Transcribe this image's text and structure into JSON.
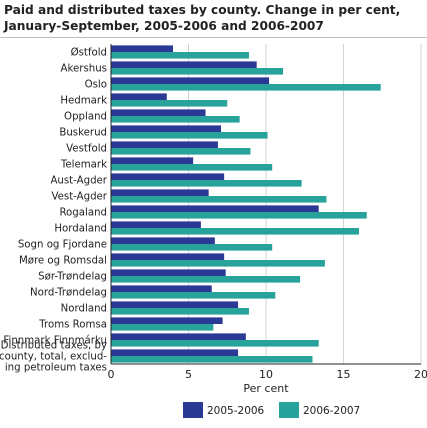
{
  "chart_data": {
    "type": "bar",
    "orientation": "horizontal",
    "title": "Paid and distributed taxes by county. Change in per cent, January-September, 2005-2006 and 2006-2007",
    "xlabel": "Per cent",
    "xlim": [
      0,
      20
    ],
    "xticks": [
      0,
      5,
      10,
      15,
      20
    ],
    "legend_position": "bottom",
    "categories": [
      "Østfold",
      "Akershus",
      "Oslo",
      "Hedmark",
      "Oppland",
      "Buskerud",
      "Vestfold",
      "Telemark",
      "Aust-Agder",
      "Vest-Agder",
      "Rogaland",
      "Hordaland",
      "Sogn og Fjordane",
      "Møre og Romsdal",
      "Sør-Trøndelag",
      "Nord-Trøndelag",
      "Nordland",
      "Troms Romsa",
      "Finnmark Finnmárku",
      "Distributed taxes, by county, total, excluding petroleum taxes"
    ],
    "category_lines": [
      [
        "Østfold"
      ],
      [
        "Akershus"
      ],
      [
        "Oslo"
      ],
      [
        "Hedmark"
      ],
      [
        "Oppland"
      ],
      [
        "Buskerud"
      ],
      [
        "Vestfold"
      ],
      [
        "Telemark"
      ],
      [
        "Aust-Agder"
      ],
      [
        "Vest-Agder"
      ],
      [
        "Rogaland"
      ],
      [
        "Hordaland"
      ],
      [
        "Sogn og Fjordane"
      ],
      [
        "Møre og Romsdal"
      ],
      [
        "Sør-Trøndelag"
      ],
      [
        "Nord-Trøndelag"
      ],
      [
        "Nordland"
      ],
      [
        "Troms Romsa"
      ],
      [
        "Finnmark Finnmárku"
      ],
      [
        "Distributed taxes, by",
        "county, total, exclud-",
        "ing petroleum taxes"
      ]
    ],
    "series": [
      {
        "name": "2005-2006",
        "color": "#2a3a94",
        "values": [
          4.0,
          9.4,
          10.2,
          3.6,
          6.1,
          7.1,
          6.9,
          5.3,
          7.3,
          6.3,
          13.4,
          5.8,
          6.7,
          7.3,
          7.4,
          6.5,
          8.2,
          7.2,
          8.7,
          8.2
        ]
      },
      {
        "name": "2006-2007",
        "color": "#28a39b",
        "values": [
          8.9,
          11.1,
          17.4,
          7.5,
          8.3,
          10.1,
          9.0,
          10.4,
          12.3,
          13.9,
          16.5,
          16.0,
          10.4,
          13.8,
          12.2,
          10.6,
          8.9,
          6.6,
          13.4,
          13.0
        ]
      }
    ]
  }
}
